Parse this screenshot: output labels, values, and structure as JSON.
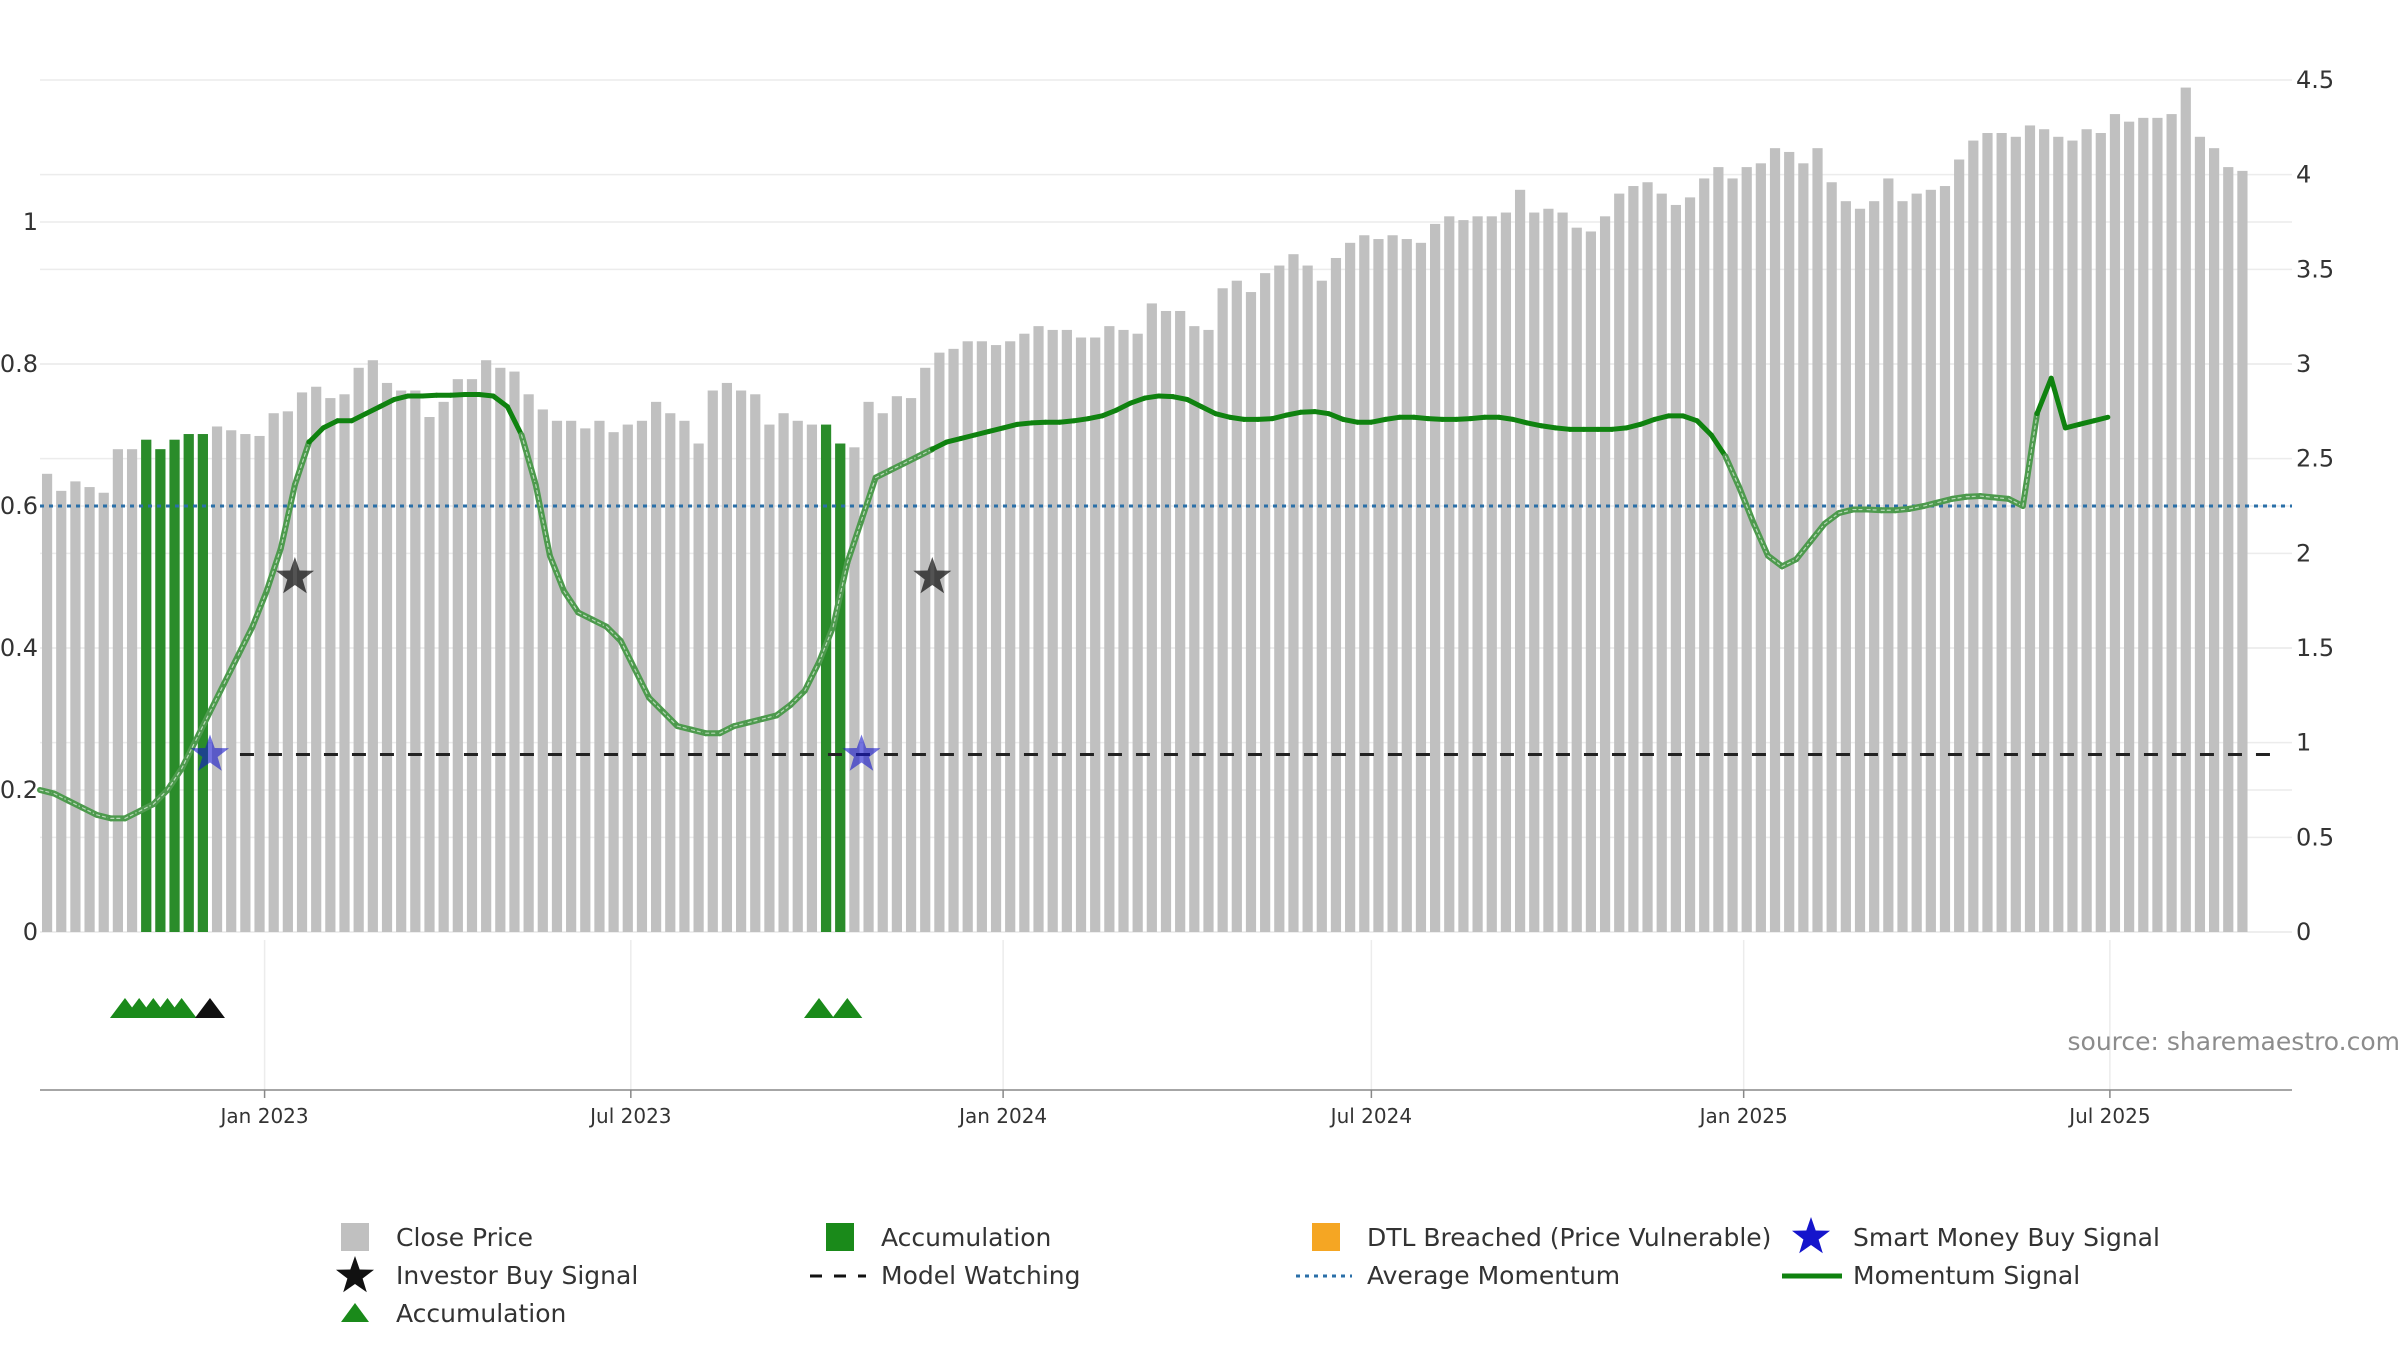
{
  "colors": {
    "close_price": "#c0c0c0",
    "accumulation": "#2a8c2a",
    "accumulation_marker": "#1a8a1a",
    "dtl_breached": "#f5a623",
    "smart_money": "#1515cc",
    "investor_buy": "#111111",
    "model_watching": "#222222",
    "average_momentum": "#2a6fa8",
    "momentum": "#0f820f",
    "momentum_faded": "#4d9a4d",
    "grid": "#ececec",
    "axis": "#888888"
  },
  "chart_data": {
    "type": "bar+line",
    "left_axis": {
      "ylim": [
        0,
        1.2
      ],
      "ticks": [
        0,
        0.2,
        0.4,
        0.6,
        0.8,
        1
      ],
      "tick_labels": [
        "0",
        "0.2",
        "0.4",
        "0.6",
        "0.8",
        "1"
      ]
    },
    "right_axis": {
      "ylim": [
        0,
        4.5
      ],
      "ticks": [
        0,
        0.5,
        1,
        1.5,
        2,
        2.5,
        3,
        3.5,
        4,
        4.5
      ],
      "tick_labels": [
        "0",
        "0.5",
        "1",
        "1.5",
        "2",
        "2.5",
        "3",
        "3.5",
        "4",
        "4.5"
      ]
    },
    "x_axis": {
      "range": [
        "2022-09-12",
        "2025-09-29"
      ],
      "bar_interval_days": 7,
      "ticks": [
        {
          "date": "2023-01-01",
          "label": "Jan 2023"
        },
        {
          "date": "2023-07-01",
          "label": "Jul 2023"
        },
        {
          "date": "2024-01-01",
          "label": "Jan 2024"
        },
        {
          "date": "2024-07-01",
          "label": "Jul 2024"
        },
        {
          "date": "2025-01-01",
          "label": "Jan 2025"
        },
        {
          "date": "2025-07-01",
          "label": "Jul 2025"
        }
      ]
    },
    "close_price": [
      2.42,
      2.33,
      2.38,
      2.35,
      2.32,
      2.55,
      2.55,
      2.6,
      2.55,
      2.6,
      2.63,
      2.63,
      2.67,
      2.65,
      2.63,
      2.62,
      2.74,
      2.75,
      2.85,
      2.88,
      2.82,
      2.84,
      2.98,
      3.02,
      2.9,
      2.86,
      2.86,
      2.72,
      2.8,
      2.92,
      2.92,
      3.02,
      2.98,
      2.96,
      2.84,
      2.76,
      2.7,
      2.7,
      2.66,
      2.7,
      2.64,
      2.68,
      2.7,
      2.8,
      2.74,
      2.7,
      2.58,
      2.86,
      2.9,
      2.86,
      2.84,
      2.68,
      2.74,
      2.7,
      2.68,
      2.58,
      2.58,
      2.56,
      2.8,
      2.74,
      2.83,
      2.82,
      2.98,
      3.06,
      3.08,
      3.12,
      3.12,
      3.1,
      3.12,
      3.16,
      3.2,
      3.18,
      3.18,
      3.14,
      3.14,
      3.2,
      3.18,
      3.16,
      3.32,
      3.28,
      3.28,
      3.2,
      3.18,
      3.4,
      3.44,
      3.38,
      3.48,
      3.52,
      3.58,
      3.52,
      3.44,
      3.56,
      3.64,
      3.68,
      3.66,
      3.68,
      3.66,
      3.64,
      3.74,
      3.78,
      3.76,
      3.78,
      3.78,
      3.8,
      3.92,
      3.8,
      3.82,
      3.8,
      3.72,
      3.7,
      3.78,
      3.9,
      3.94,
      3.96,
      3.9,
      3.84,
      3.88,
      3.98,
      4.04,
      3.98,
      4.04,
      4.06,
      4.14,
      4.12,
      4.06,
      4.14,
      3.96,
      3.86,
      3.82,
      3.86,
      3.98,
      3.86,
      3.9,
      3.92,
      3.94,
      4.08,
      4.18,
      4.22,
      4.22,
      4.2,
      4.26,
      4.24,
      4.2,
      4.18,
      4.24,
      4.22,
      4.32,
      4.28,
      4.3,
      4.3,
      4.32,
      4.46,
      4.2,
      4.14,
      4.04,
      4.02
    ],
    "accumulation_bars": [
      {
        "index": 7,
        "value": 2.6
      },
      {
        "index": 8,
        "value": 2.55
      },
      {
        "index": 9,
        "value": 2.6
      },
      {
        "index": 10,
        "value": 2.63
      },
      {
        "index": 11,
        "value": 2.63
      },
      {
        "index": 55,
        "value": 2.68
      },
      {
        "index": 56,
        "value": 2.58
      }
    ],
    "momentum": {
      "start": "2022-09-12",
      "interval_days": 7,
      "values": [
        0.2,
        0.195,
        0.185,
        0.175,
        0.165,
        0.16,
        0.16,
        0.17,
        0.18,
        0.2,
        0.23,
        0.27,
        0.31,
        0.35,
        0.39,
        0.43,
        0.48,
        0.54,
        0.63,
        0.69,
        0.71,
        0.72,
        0.72,
        0.73,
        0.74,
        0.75,
        0.755,
        0.755,
        0.756,
        0.756,
        0.757,
        0.757,
        0.755,
        0.74,
        0.7,
        0.63,
        0.53,
        0.48,
        0.45,
        0.44,
        0.43,
        0.41,
        0.37,
        0.33,
        0.31,
        0.29,
        0.285,
        0.28,
        0.28,
        0.29,
        0.295,
        0.3,
        0.305,
        0.32,
        0.34,
        0.38,
        0.43,
        0.52,
        0.58,
        0.64,
        0.65,
        0.66,
        0.67,
        0.68,
        0.69,
        0.695,
        0.7,
        0.705,
        0.71,
        0.715,
        0.717,
        0.718,
        0.718,
        0.72,
        0.723,
        0.727,
        0.735,
        0.745,
        0.752,
        0.755,
        0.754,
        0.75,
        0.74,
        0.73,
        0.725,
        0.722,
        0.722,
        0.723,
        0.728,
        0.732,
        0.733,
        0.73,
        0.722,
        0.718,
        0.718,
        0.722,
        0.725,
        0.725,
        0.723,
        0.722,
        0.722,
        0.723,
        0.725,
        0.725,
        0.722,
        0.717,
        0.713,
        0.71,
        0.708,
        0.708,
        0.708,
        0.708,
        0.71,
        0.715,
        0.722,
        0.727,
        0.727,
        0.72,
        0.7,
        0.67,
        0.625,
        0.575,
        0.53,
        0.515,
        0.525,
        0.55,
        0.575,
        0.59,
        0.595,
        0.595,
        0.594,
        0.594,
        0.596,
        0.6,
        0.605,
        0.61,
        0.613,
        0.614,
        0.612,
        0.61,
        0.6,
        0.73,
        0.78,
        0.71,
        0.715,
        0.72,
        0.725
      ]
    },
    "average_momentum": 0.6,
    "model_watching": {
      "level": 0.25,
      "start": "2022-12-05",
      "end": "2025-09-22"
    },
    "investor_buy_signals": [
      {
        "date": "2023-01-16",
        "value": 0.5
      },
      {
        "date": "2023-11-27",
        "value": 0.5
      }
    ],
    "smart_money_buy_signals": [
      {
        "date": "2022-12-05",
        "value": 0.25
      },
      {
        "date": "2023-10-23",
        "value": 0.25
      }
    ],
    "accumulation_markers": [
      {
        "date": "2022-10-24",
        "color_key": "accumulation_marker"
      },
      {
        "date": "2022-10-31",
        "color_key": "accumulation_marker"
      },
      {
        "date": "2022-11-07",
        "color_key": "accumulation_marker"
      },
      {
        "date": "2022-11-14",
        "color_key": "accumulation_marker"
      },
      {
        "date": "2022-11-21",
        "color_key": "accumulation_marker"
      },
      {
        "date": "2022-12-05",
        "color_key": "investor_buy"
      },
      {
        "date": "2023-10-02",
        "color_key": "accumulation_marker"
      },
      {
        "date": "2023-10-16",
        "color_key": "accumulation_marker"
      }
    ]
  },
  "legend": {
    "close_price": "Close Price",
    "accumulation_bar": "Accumulation",
    "dtl_breached": "DTL Breached (Price Vulnerable)",
    "smart_money": "Smart Money Buy Signal",
    "investor_buy": "Investor Buy Signal",
    "model_watching": "Model Watching",
    "average_momentum": "Average Momentum",
    "momentum_signal": "Momentum Signal",
    "accumulation_marker": "Accumulation"
  },
  "source": "source: sharemaestro.com"
}
